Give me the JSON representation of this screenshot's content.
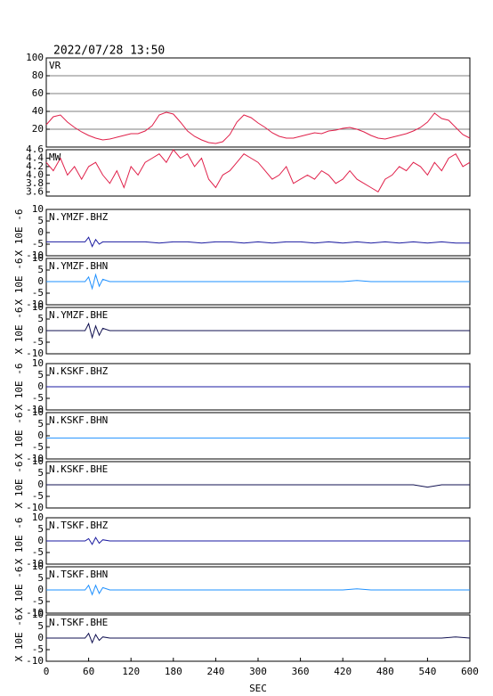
{
  "title": "2022/07/28 13:50",
  "chart_data": [
    {
      "type": "line",
      "xlim": [
        0,
        600
      ],
      "ylim": [
        0,
        100
      ],
      "yticks": [
        20,
        40,
        60,
        80,
        100
      ],
      "grid": true,
      "x": [
        0,
        10,
        20,
        30,
        40,
        50,
        60,
        70,
        80,
        90,
        100,
        110,
        120,
        130,
        140,
        150,
        160,
        170,
        180,
        190,
        200,
        210,
        220,
        230,
        240,
        250,
        260,
        270,
        280,
        290,
        300,
        310,
        320,
        330,
        340,
        350,
        360,
        370,
        380,
        390,
        400,
        410,
        420,
        430,
        440,
        450,
        460,
        470,
        480,
        490,
        500,
        510,
        520,
        530,
        540,
        550,
        560,
        570,
        580,
        590,
        600
      ],
      "series": [
        {
          "name": "VR",
          "color": "#e0204a",
          "values": [
            25,
            34,
            36,
            28,
            22,
            17,
            13,
            10,
            8,
            9,
            11,
            13,
            15,
            15,
            18,
            24,
            36,
            39,
            37,
            28,
            18,
            12,
            8,
            5,
            4,
            6,
            14,
            28,
            36,
            33,
            27,
            22,
            16,
            12,
            10,
            10,
            12,
            14,
            16,
            15,
            18,
            19,
            21,
            22,
            20,
            17,
            13,
            10,
            9,
            11,
            13,
            15,
            18,
            22,
            28,
            38,
            32,
            30,
            22,
            14,
            10
          ]
        }
      ]
    },
    {
      "type": "line",
      "xlim": [
        0,
        600
      ],
      "ylim": [
        3.5,
        4.6
      ],
      "yticks": [
        3.6,
        3.8,
        {
          "value": 4.0,
          "label": "4.0"
        },
        4.2,
        4.4,
        4.6
      ],
      "grid": false,
      "x": [
        0,
        10,
        20,
        30,
        40,
        50,
        60,
        70,
        80,
        90,
        100,
        110,
        120,
        130,
        140,
        150,
        160,
        170,
        180,
        190,
        200,
        210,
        220,
        230,
        240,
        250,
        260,
        270,
        280,
        290,
        300,
        310,
        320,
        330,
        340,
        350,
        360,
        370,
        380,
        390,
        400,
        410,
        420,
        430,
        440,
        450,
        460,
        470,
        480,
        490,
        500,
        510,
        520,
        530,
        540,
        550,
        560,
        570,
        580,
        590,
        600
      ],
      "series": [
        {
          "name": "MW",
          "color": "#e0204a",
          "values": [
            4.3,
            4.1,
            4.4,
            4.0,
            4.2,
            3.9,
            4.2,
            4.3,
            4.0,
            3.8,
            4.1,
            3.7,
            4.2,
            4.0,
            4.3,
            4.4,
            4.5,
            4.3,
            4.6,
            4.4,
            4.5,
            4.2,
            4.4,
            3.9,
            3.7,
            4.0,
            4.1,
            4.3,
            4.5,
            4.4,
            4.3,
            4.1,
            3.9,
            4.0,
            4.2,
            3.8,
            3.9,
            4.0,
            3.9,
            4.1,
            4.0,
            3.8,
            3.9,
            4.1,
            3.9,
            3.8,
            3.7,
            3.6,
            3.9,
            4.0,
            4.2,
            4.1,
            4.3,
            4.2,
            4.0,
            4.3,
            4.1,
            4.4,
            4.5,
            4.2,
            4.3
          ]
        }
      ]
    },
    {
      "type": "line",
      "ylabel": "X 10E -6",
      "xlim": [
        0,
        600
      ],
      "ylim": [
        -10,
        10
      ],
      "yticks": [
        -10,
        -5,
        0,
        5,
        10
      ],
      "x": [
        0,
        20,
        40,
        55,
        60,
        65,
        70,
        75,
        80,
        90,
        100,
        120,
        140,
        160,
        180,
        200,
        220,
        240,
        260,
        280,
        300,
        320,
        340,
        360,
        380,
        400,
        420,
        440,
        460,
        480,
        500,
        520,
        540,
        560,
        580,
        600
      ],
      "series": [
        {
          "name": "N.YMZF.BHZ",
          "color": "#1a1aa0",
          "values": [
            -4,
            -4,
            -4,
            -4,
            -2,
            -6,
            -3,
            -5,
            -4,
            -4,
            -4,
            -4,
            -4,
            -4.5,
            -4,
            -4,
            -4.5,
            -4,
            -4,
            -4.5,
            -4,
            -4.5,
            -4,
            -4,
            -4.5,
            -4,
            -4.5,
            -4,
            -4.5,
            -4,
            -4.5,
            -4,
            -4.5,
            -4,
            -4.5,
            -4.5
          ]
        }
      ]
    },
    {
      "type": "line",
      "ylabel": "X 10E -6",
      "xlim": [
        0,
        600
      ],
      "ylim": [
        -10,
        10
      ],
      "yticks": [
        -10,
        -5,
        0,
        5,
        10
      ],
      "x": [
        0,
        20,
        40,
        55,
        60,
        65,
        70,
        75,
        80,
        90,
        100,
        120,
        140,
        160,
        180,
        200,
        220,
        240,
        260,
        280,
        300,
        320,
        340,
        360,
        380,
        400,
        420,
        440,
        460,
        480,
        500,
        520,
        540,
        560,
        580,
        600
      ],
      "series": [
        {
          "name": "N.YMZF.BHN",
          "color": "#1e90ff",
          "values": [
            0,
            0,
            0,
            0,
            2,
            -3,
            3,
            -2,
            1,
            0,
            0,
            0,
            0,
            0,
            0,
            0,
            0,
            0,
            0,
            0,
            0,
            0,
            0,
            0,
            0,
            0,
            0,
            0.5,
            0,
            0,
            0,
            0,
            0,
            0,
            0,
            0
          ]
        }
      ]
    },
    {
      "type": "line",
      "ylabel": "X 10E -6",
      "xlim": [
        0,
        600
      ],
      "ylim": [
        -10,
        10
      ],
      "yticks": [
        -10,
        -5,
        0,
        5,
        10
      ],
      "x": [
        0,
        20,
        40,
        55,
        60,
        65,
        70,
        75,
        80,
        90,
        100,
        120,
        140,
        160,
        180,
        200,
        220,
        240,
        260,
        280,
        300,
        320,
        340,
        360,
        380,
        400,
        420,
        440,
        460,
        480,
        500,
        520,
        540,
        560,
        580,
        600
      ],
      "series": [
        {
          "name": "N.YMZF.BHE",
          "color": "#101050",
          "values": [
            0,
            0,
            0,
            0,
            3,
            -3,
            2,
            -2,
            1,
            0,
            0,
            0,
            0,
            0,
            0,
            0,
            0,
            0,
            0,
            0,
            0,
            0,
            0,
            0,
            0,
            0,
            0,
            0,
            0,
            0,
            0,
            0,
            0,
            0,
            0,
            0
          ]
        }
      ]
    },
    {
      "type": "line",
      "ylabel": "X 10E -6",
      "xlim": [
        0,
        600
      ],
      "ylim": [
        -10,
        10
      ],
      "yticks": [
        -10,
        -5,
        0,
        5,
        10
      ],
      "x": [
        0,
        20,
        40,
        55,
        60,
        65,
        70,
        75,
        80,
        90,
        100,
        120,
        140,
        160,
        180,
        200,
        220,
        240,
        260,
        280,
        300,
        320,
        340,
        360,
        380,
        400,
        420,
        440,
        460,
        480,
        500,
        520,
        540,
        560,
        580,
        600
      ],
      "series": [
        {
          "name": "N.KSKF.BHZ",
          "color": "#1a1aa0",
          "values": [
            0,
            0,
            0,
            0,
            0,
            0,
            0,
            0,
            0,
            0,
            0,
            0,
            0,
            0,
            0,
            0,
            0,
            0,
            0,
            0,
            0,
            0,
            0,
            0,
            0,
            0,
            0,
            0,
            0,
            0,
            0,
            0,
            0,
            0,
            0,
            0
          ]
        }
      ]
    },
    {
      "type": "line",
      "ylabel": "X 10E -6",
      "xlim": [
        0,
        600
      ],
      "ylim": [
        -10,
        10
      ],
      "yticks": [
        -10,
        -5,
        0,
        5,
        10
      ],
      "x": [
        0,
        20,
        40,
        55,
        60,
        65,
        70,
        75,
        80,
        90,
        100,
        120,
        140,
        160,
        180,
        200,
        220,
        240,
        260,
        280,
        300,
        320,
        340,
        360,
        380,
        400,
        420,
        440,
        460,
        480,
        500,
        520,
        540,
        560,
        580,
        600
      ],
      "series": [
        {
          "name": "N.KSKF.BHN",
          "color": "#1e90ff",
          "values": [
            -1,
            -1,
            -1,
            -1,
            -1,
            -1,
            -1,
            -1,
            -1,
            -1,
            -1,
            -1,
            -1,
            -1,
            -1,
            -1,
            -1,
            -1,
            -1,
            -1,
            -1,
            -1,
            -1,
            -1,
            -1,
            -1,
            -1,
            -1,
            -1,
            -1,
            -1,
            -1,
            -1,
            -1,
            -1,
            -1
          ]
        }
      ]
    },
    {
      "type": "line",
      "ylabel": "X 10E -6",
      "xlim": [
        0,
        600
      ],
      "ylim": [
        -10,
        10
      ],
      "yticks": [
        -10,
        -5,
        0,
        5,
        10
      ],
      "x": [
        0,
        20,
        40,
        55,
        60,
        65,
        70,
        75,
        80,
        90,
        100,
        120,
        140,
        160,
        180,
        200,
        220,
        240,
        260,
        280,
        300,
        320,
        340,
        360,
        380,
        400,
        420,
        440,
        460,
        480,
        500,
        520,
        540,
        560,
        580,
        600
      ],
      "series": [
        {
          "name": "N.KSKF.BHE",
          "color": "#101050",
          "values": [
            0,
            0,
            0,
            0,
            0,
            0,
            0,
            0,
            0,
            0,
            0,
            0,
            0,
            0,
            0,
            0,
            0,
            0,
            0,
            0,
            0,
            0,
            0,
            0,
            0,
            0,
            0,
            0,
            0,
            0,
            0,
            0,
            -1,
            0,
            0,
            0
          ]
        }
      ]
    },
    {
      "type": "line",
      "ylabel": "X 10E -6",
      "xlim": [
        0,
        600
      ],
      "ylim": [
        -10,
        10
      ],
      "yticks": [
        -10,
        -5,
        0,
        5,
        10
      ],
      "x": [
        0,
        20,
        40,
        55,
        60,
        65,
        70,
        75,
        80,
        90,
        100,
        120,
        140,
        160,
        180,
        200,
        220,
        240,
        260,
        280,
        300,
        320,
        340,
        360,
        380,
        400,
        420,
        440,
        460,
        480,
        500,
        520,
        540,
        560,
        580,
        600
      ],
      "series": [
        {
          "name": "N.TSKF.BHZ",
          "color": "#1a1aa0",
          "values": [
            0,
            0,
            0,
            0,
            1,
            -1.5,
            1.5,
            -1,
            0.5,
            0,
            0,
            0,
            0,
            0,
            0,
            0,
            0,
            0,
            0,
            0,
            0,
            0,
            0,
            0,
            0,
            0,
            0,
            0,
            0,
            0,
            0,
            0,
            0,
            0,
            0,
            0
          ]
        }
      ]
    },
    {
      "type": "line",
      "ylabel": "X 10E -6",
      "xlim": [
        0,
        600
      ],
      "ylim": [
        -10,
        10
      ],
      "yticks": [
        -10,
        -5,
        0,
        5,
        10
      ],
      "x": [
        0,
        20,
        40,
        55,
        60,
        65,
        70,
        75,
        80,
        90,
        100,
        120,
        140,
        160,
        180,
        200,
        220,
        240,
        260,
        280,
        300,
        320,
        340,
        360,
        380,
        400,
        420,
        440,
        460,
        480,
        500,
        520,
        540,
        560,
        580,
        600
      ],
      "series": [
        {
          "name": "N.TSKF.BHN",
          "color": "#1e90ff",
          "values": [
            0,
            0,
            0,
            0,
            2,
            -2,
            2,
            -1.5,
            1,
            0,
            0,
            0,
            0,
            0,
            0,
            0,
            0,
            0,
            0,
            0,
            0,
            0,
            0,
            0,
            0,
            0,
            0,
            0.5,
            0,
            0,
            0,
            0,
            0,
            0,
            0,
            0
          ]
        }
      ]
    },
    {
      "type": "line",
      "ylabel": "X 10E -6",
      "xlabel": "SEC",
      "xlim": [
        0,
        600
      ],
      "xticks": [
        0,
        60,
        120,
        180,
        240,
        300,
        360,
        420,
        480,
        540,
        600
      ],
      "ylim": [
        -10,
        10
      ],
      "yticks": [
        -10,
        -5,
        0,
        5,
        10
      ],
      "x": [
        0,
        20,
        40,
        55,
        60,
        65,
        70,
        75,
        80,
        90,
        100,
        120,
        140,
        160,
        180,
        200,
        220,
        240,
        260,
        280,
        300,
        320,
        340,
        360,
        380,
        400,
        420,
        440,
        460,
        480,
        500,
        520,
        540,
        560,
        580,
        600
      ],
      "series": [
        {
          "name": "N.TSKF.BHE",
          "color": "#101050",
          "values": [
            0,
            0,
            0,
            0,
            2,
            -2,
            1.5,
            -1,
            0.5,
            0,
            0,
            0,
            0,
            0,
            0,
            0,
            0,
            0,
            0,
            0,
            0,
            0,
            0,
            0,
            0,
            0,
            0,
            0,
            0,
            0,
            0,
            0,
            0,
            0,
            0.5,
            0
          ]
        }
      ]
    }
  ]
}
